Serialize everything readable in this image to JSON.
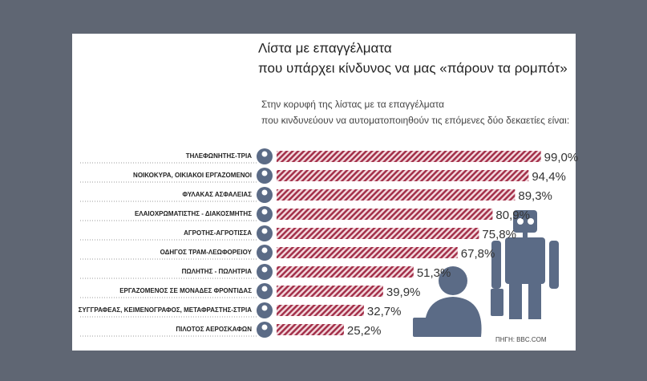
{
  "chart_data": {
    "type": "bar",
    "title": [
      "Λίστα με επαγγέλματα",
      "που υπάρχει κίνδυνος να μας «πάρουν τα ρομπότ»"
    ],
    "subtitle": [
      "Στην κορυφή της λίστας με τα επαγγέλματα",
      "που κινδυνεύουν να αυτοματοποιηθούν τις επόμενες δύο δεκαετίες είναι:"
    ],
    "categories": [
      "ΤΗΛΕΦΩΝΗΤΗΣ-ΤΡΙΑ",
      "ΝΟΙΚΟΚΥΡΑ, ΟΙΚΙΑΚΟΙ ΕΡΓΑΖΟΜΕΝΟΙ",
      "ΦΥΛΑΚΑΣ ΑΣΦΑΛΕΙΑΣ",
      "ΕΛΑΙΟΧΡΩΜΑΤΙΣΤΗΣ - ΔΙΑΚΟΣΜΗΤΗΣ",
      "ΑΓΡΟΤΗΣ-ΑΓΡΟΤΙΣΣΑ",
      "ΟΔΗΓΟΣ ΤΡΑΜ-ΛΕΩΦΟΡΕΙΟΥ",
      "ΠΩΛΗΤΗΣ - ΠΩΛΗΤΡΙΑ",
      "ΕΡΓΑΖΟΜΕΝΟΣ ΣΕ ΜΟΝΑΔΕΣ ΦΡΟΝΤΙΔΑΣ",
      "ΣΥΓΓΡΑΦΕΑΣ, ΚΕΙΜΕΝΟΓΡΑΦΟΣ, ΜΕΤΑΦΡΑΣΤΗΣ-ΣΤΡΙΑ",
      "ΠΙΛΟΤΟΣ ΑΕΡΟΣΚΑΦΩΝ"
    ],
    "values": [
      99.0,
      94.4,
      89.3,
      80.9,
      75.8,
      67.8,
      51.3,
      39.9,
      32.7,
      25.2
    ],
    "value_labels": [
      "99,0%",
      "94,4%",
      "89,3%",
      "80,9%",
      "75,8%",
      "67,8%",
      "51,3%",
      "39,9%",
      "32,7%",
      "25,2%"
    ],
    "color": "#a3304a",
    "source": "ΠΗΓΗ: BBC.COM"
  }
}
